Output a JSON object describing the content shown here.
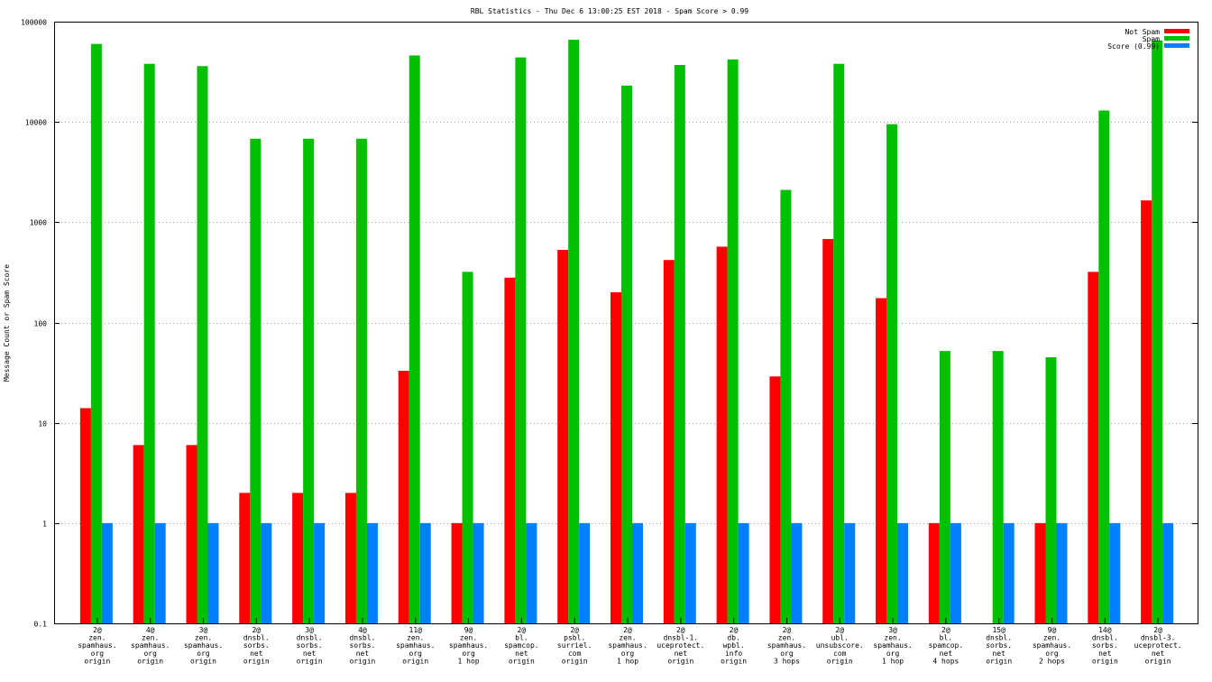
{
  "chart_data": {
    "type": "bar",
    "title": "RBL Statistics - Thu Dec  6 13:00:25 EST 2018 - Spam Score > 0.99",
    "xlabel": "",
    "ylabel": "Message Count or Spam Score",
    "yscale": "log",
    "ylim": [
      0.1,
      100000
    ],
    "yticks": [
      "0.1",
      "1",
      "10",
      "100",
      "1000",
      "10000",
      "100000"
    ],
    "grid": true,
    "legend_position": "top-right",
    "categories": [
      [
        "2@",
        "zen.",
        "spamhaus.",
        "org",
        "origin"
      ],
      [
        "4@",
        "zen.",
        "spamhaus.",
        "org",
        "origin"
      ],
      [
        "3@",
        "zen.",
        "spamhaus.",
        "org",
        "origin"
      ],
      [
        "2@",
        "dnsbl.",
        "sorbs.",
        "net",
        "origin"
      ],
      [
        "3@",
        "dnsbl.",
        "sorbs.",
        "net",
        "origin"
      ],
      [
        "4@",
        "dnsbl.",
        "sorbs.",
        "net",
        "origin"
      ],
      [
        "11@",
        "zen.",
        "spamhaus.",
        "org",
        "origin"
      ],
      [
        "9@",
        "zen.",
        "spamhaus.",
        "org",
        "1 hop"
      ],
      [
        "2@",
        "bl.",
        "spamcop.",
        "net",
        "origin"
      ],
      [
        "2@",
        "psbl.",
        "surriel.",
        "com",
        "origin"
      ],
      [
        "2@",
        "zen.",
        "spamhaus.",
        "org",
        "1 hop"
      ],
      [
        "2@",
        "dnsbl-1.",
        "uceprotect.",
        "net",
        "origin"
      ],
      [
        "2@",
        "db.",
        "wpbl.",
        "info",
        "origin"
      ],
      [
        "2@",
        "zen.",
        "spamhaus.",
        "org",
        "3 hops"
      ],
      [
        "2@",
        "ubl.",
        "unsubscore.",
        "com",
        "origin"
      ],
      [
        "3@",
        "zen.",
        "spamhaus.",
        "org",
        "1 hop"
      ],
      [
        "2@",
        "bl.",
        "spamcop.",
        "net",
        "4 hops"
      ],
      [
        "15@",
        "dnsbl.",
        "sorbs.",
        "net",
        "origin"
      ],
      [
        "9@",
        "zen.",
        "spamhaus.",
        "org",
        "2 hops"
      ],
      [
        "14@",
        "dnsbl.",
        "sorbs.",
        "net",
        "origin"
      ],
      [
        "2@",
        "dnsbl-3.",
        "uceprotect.",
        "net",
        "origin"
      ]
    ],
    "series": [
      {
        "name": "Not Spam",
        "color": "#ff0000",
        "values": [
          14,
          6,
          6,
          2,
          2,
          2,
          33,
          1,
          280,
          530,
          200,
          420,
          570,
          29,
          680,
          175,
          1,
          null,
          1,
          320,
          1650
        ]
      },
      {
        "name": "Spam",
        "color": "#00c000",
        "values": [
          60000,
          38000,
          36000,
          6800,
          6800,
          6800,
          46000,
          320,
          44000,
          66000,
          23000,
          37000,
          42000,
          2100,
          38000,
          9500,
          52,
          52,
          45,
          13000,
          65000
        ]
      },
      {
        "name": "Score (0.99)",
        "color": "#0080ff",
        "values": [
          1,
          1,
          1,
          1,
          1,
          1,
          1,
          1,
          1,
          1,
          1,
          1,
          1,
          1,
          1,
          1,
          1,
          1,
          1,
          1,
          1
        ]
      }
    ]
  }
}
